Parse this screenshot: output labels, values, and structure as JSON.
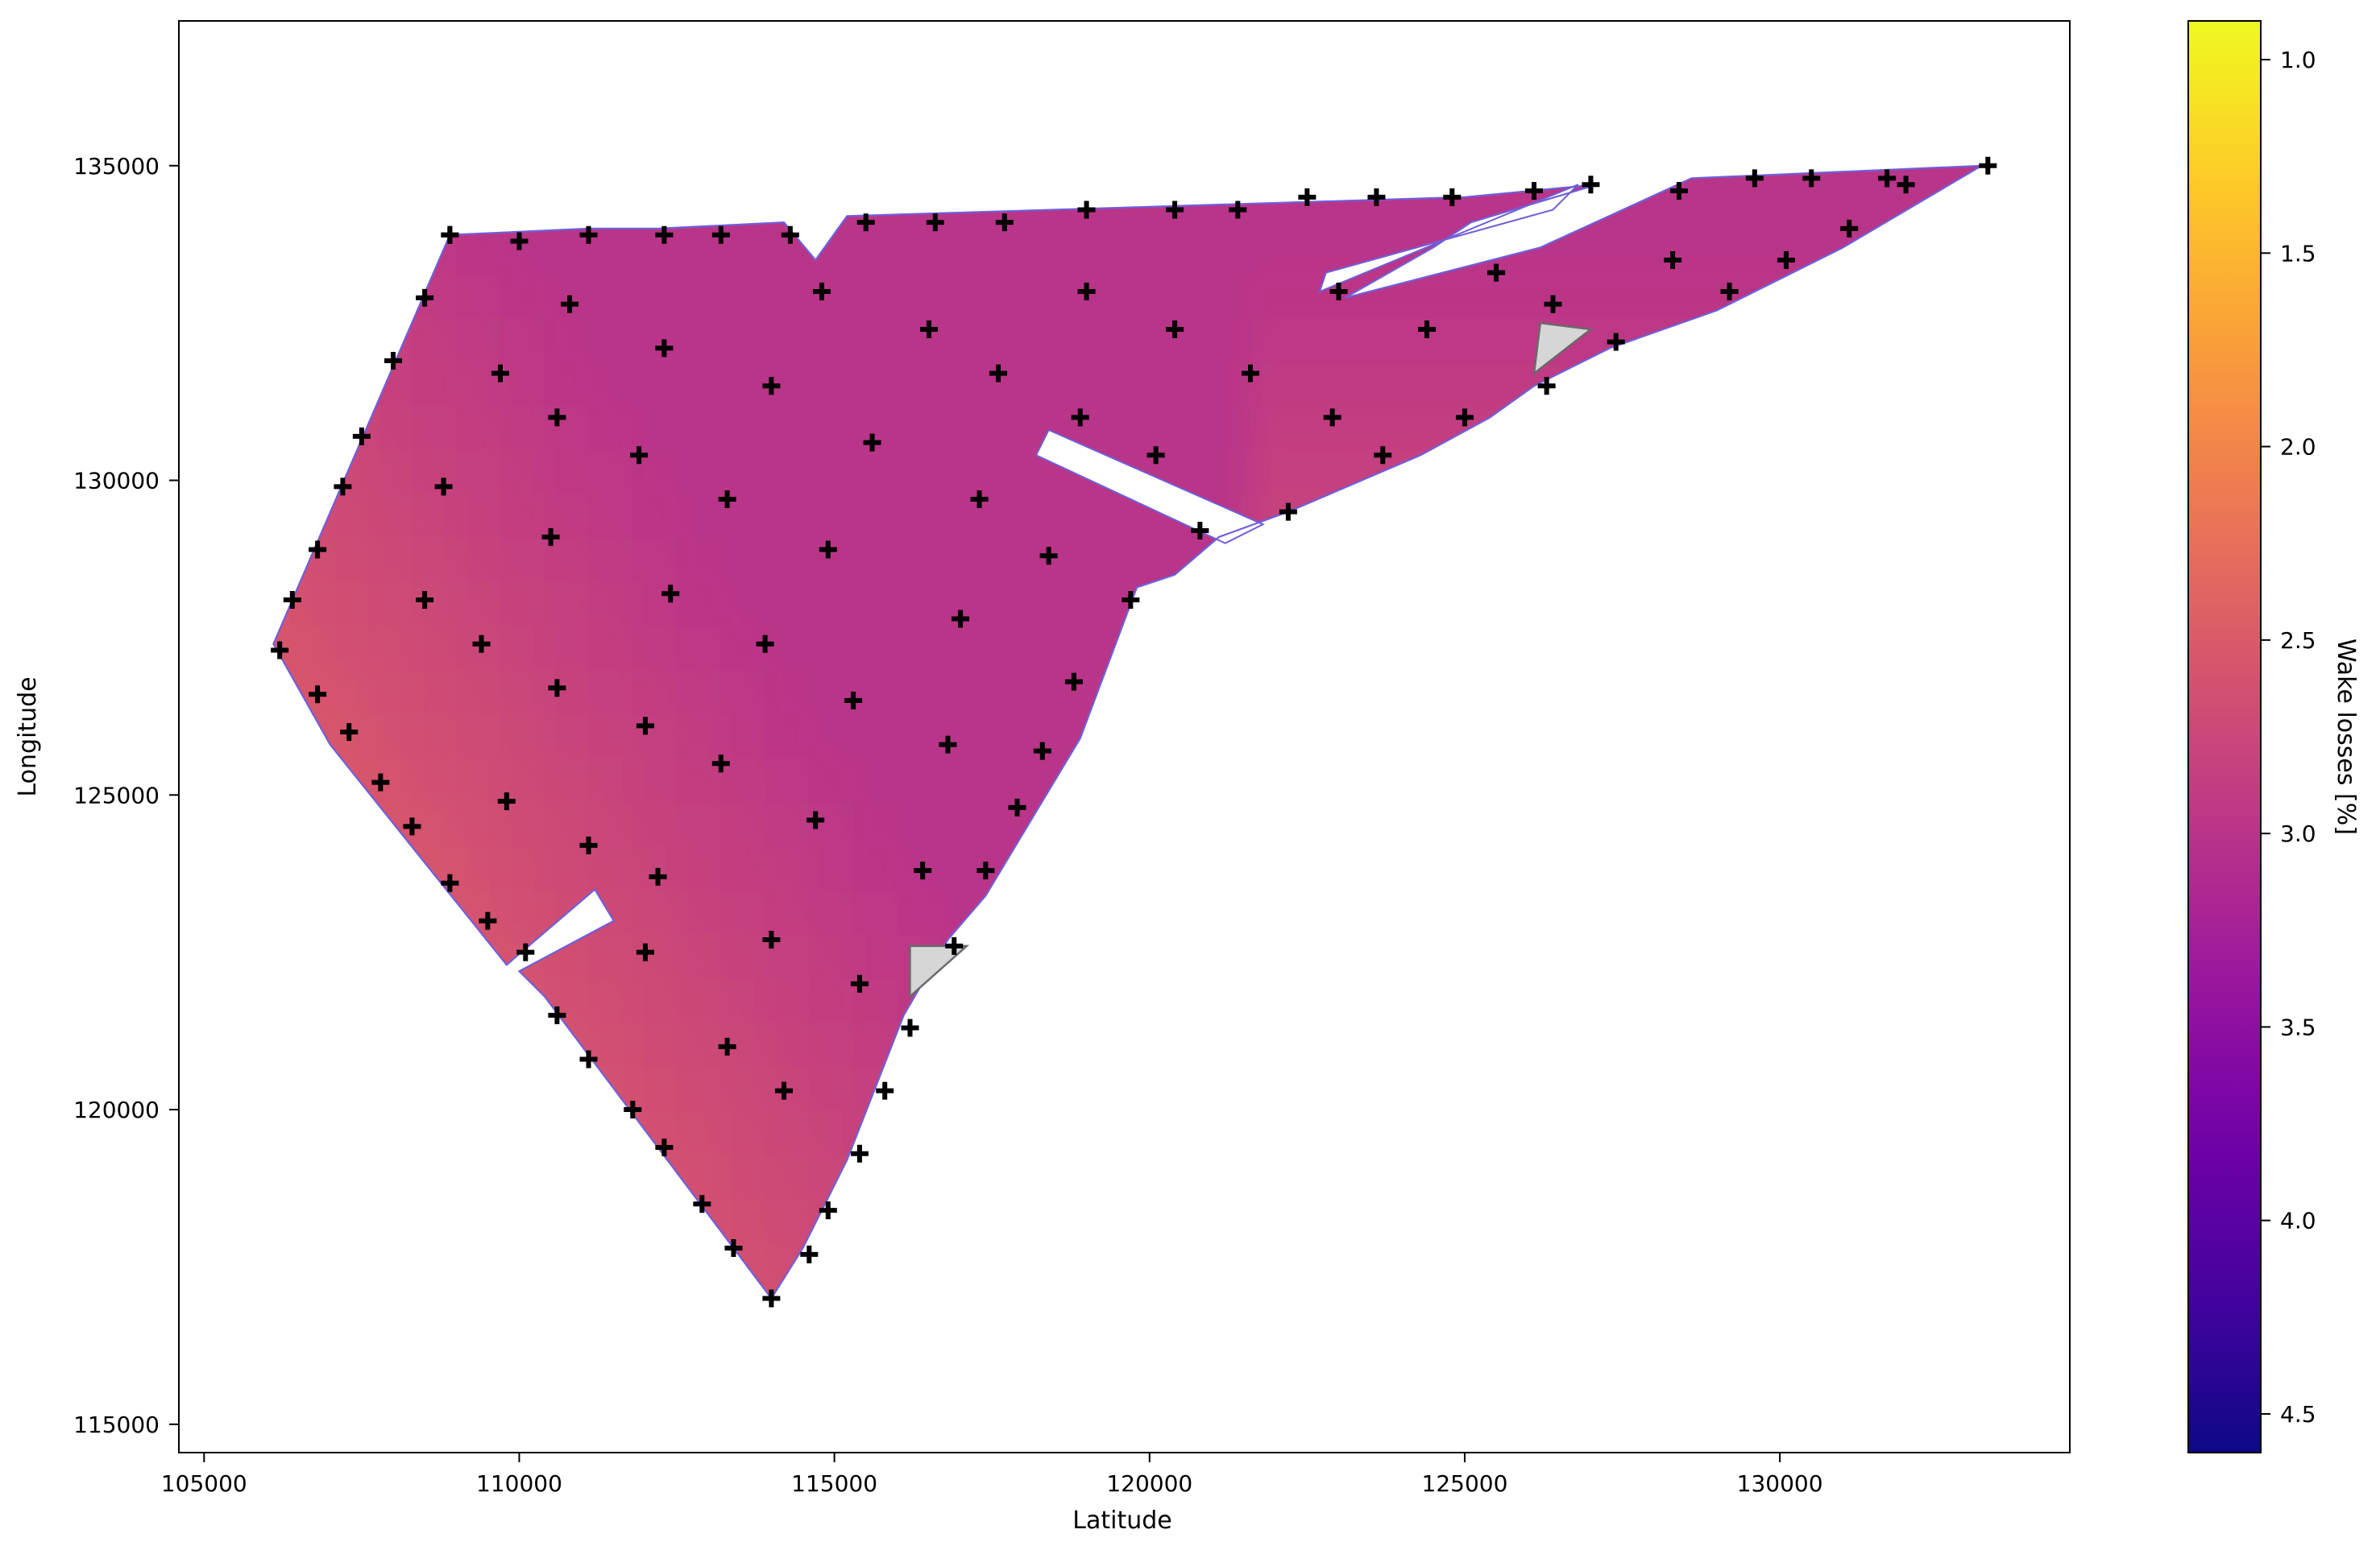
{
  "chart_data": {
    "type": "heatmap",
    "title": "",
    "xlabel": "Latitude",
    "ylabel": "Longitude",
    "xlim": [
      104600,
      134600
    ],
    "ylim": [
      114550,
      137300
    ],
    "xticks": [
      105000,
      110000,
      115000,
      120000,
      125000,
      130000
    ],
    "yticks": [
      115000,
      120000,
      125000,
      130000,
      135000
    ],
    "colorbar": {
      "label": "Wake losses [%]",
      "range_top": 0.9,
      "range_bottom": 4.6,
      "inverted": true,
      "ticks": [
        "1.0",
        "1.5",
        "2.0",
        "2.5",
        "3.0",
        "3.5",
        "4.0",
        "4.5"
      ],
      "colormap": "plasma",
      "colormap_stops": [
        "#0d0887",
        "#46039f",
        "#7201a8",
        "#9c179e",
        "#bd3786",
        "#d8576b",
        "#ed7953",
        "#fb9f3a",
        "#fdca26",
        "#f0f921"
      ]
    },
    "wake_loss_range_shown": [
      2.1,
      3.0
    ],
    "site_boundary": [
      [
        106100,
        127400
      ],
      [
        108900,
        133900
      ],
      [
        111100,
        134000
      ],
      [
        112200,
        134000
      ],
      [
        114200,
        134100
      ],
      [
        114700,
        133500
      ],
      [
        115200,
        134200
      ],
      [
        125000,
        134500
      ],
      [
        127100,
        134700
      ],
      [
        125100,
        134100
      ],
      [
        124500,
        133700
      ],
      [
        123100,
        132900
      ],
      [
        126200,
        133700
      ],
      [
        128600,
        134800
      ],
      [
        133200,
        135000
      ],
      [
        131000,
        133700
      ],
      [
        129000,
        132700
      ],
      [
        127300,
        132100
      ],
      [
        126100,
        131500
      ],
      [
        125400,
        131000
      ],
      [
        124300,
        130400
      ],
      [
        122200,
        129500
      ],
      [
        121100,
        129100
      ],
      [
        120400,
        128500
      ],
      [
        119800,
        128300
      ],
      [
        118900,
        125900
      ],
      [
        117400,
        123400
      ],
      [
        116800,
        122700
      ],
      [
        116100,
        121500
      ],
      [
        115200,
        119200
      ],
      [
        114500,
        117800
      ],
      [
        114000,
        117000
      ],
      [
        112500,
        119000
      ],
      [
        110400,
        121800
      ],
      [
        110000,
        122200
      ],
      [
        111500,
        123000
      ],
      [
        111200,
        123500
      ],
      [
        109800,
        122300
      ],
      [
        107000,
        125800
      ]
    ],
    "inner_gaps": [
      [
        [
          118400,
          130800
        ],
        [
          121800,
          129300
        ],
        [
          121200,
          129000
        ],
        [
          118200,
          130400
        ]
      ],
      [
        [
          122800,
          133300
        ],
        [
          126400,
          134300
        ],
        [
          126800,
          134700
        ],
        [
          122700,
          133000
        ]
      ]
    ],
    "exclusion_zones": [
      [
        [
          116200,
          122600
        ],
        [
          117100,
          122600
        ],
        [
          116200,
          121800
        ]
      ],
      [
        [
          126200,
          132500
        ],
        [
          127000,
          132400
        ],
        [
          126100,
          131700
        ]
      ]
    ],
    "turbines": [
      [
        106200,
        127300
      ],
      [
        106400,
        128100
      ],
      [
        106800,
        128900
      ],
      [
        107200,
        129900
      ],
      [
        107500,
        130700
      ],
      [
        108000,
        131900
      ],
      [
        108500,
        132900
      ],
      [
        108900,
        133900
      ],
      [
        106800,
        126600
      ],
      [
        107300,
        126000
      ],
      [
        107800,
        125200
      ],
      [
        108300,
        124500
      ],
      [
        108900,
        123600
      ],
      [
        109500,
        123000
      ],
      [
        110100,
        122500
      ],
      [
        110600,
        121500
      ],
      [
        111100,
        120800
      ],
      [
        111800,
        120000
      ],
      [
        112300,
        119400
      ],
      [
        112900,
        118500
      ],
      [
        113400,
        117800
      ],
      [
        114000,
        117000
      ],
      [
        114600,
        117700
      ],
      [
        114900,
        118400
      ],
      [
        115400,
        119300
      ],
      [
        115800,
        120300
      ],
      [
        116200,
        121300
      ],
      [
        116900,
        122600
      ],
      [
        117400,
        123800
      ],
      [
        117900,
        124800
      ],
      [
        118300,
        125700
      ],
      [
        118800,
        126800
      ],
      [
        119700,
        128100
      ],
      [
        120800,
        129200
      ],
      [
        122200,
        129500
      ],
      [
        123700,
        130400
      ],
      [
        125000,
        131000
      ],
      [
        126300,
        131500
      ],
      [
        127400,
        132200
      ],
      [
        129200,
        133000
      ],
      [
        130100,
        133500
      ],
      [
        131100,
        134000
      ],
      [
        132000,
        134700
      ],
      [
        133300,
        135000
      ],
      [
        131700,
        134800
      ],
      [
        130500,
        134800
      ],
      [
        129600,
        134800
      ],
      [
        128400,
        134600
      ],
      [
        127000,
        134700
      ],
      [
        126100,
        134600
      ],
      [
        124800,
        134500
      ],
      [
        123600,
        134500
      ],
      [
        122500,
        134500
      ],
      [
        121400,
        134300
      ],
      [
        120400,
        134300
      ],
      [
        119000,
        134300
      ],
      [
        117700,
        134100
      ],
      [
        116600,
        134100
      ],
      [
        115500,
        134100
      ],
      [
        114300,
        133900
      ],
      [
        113200,
        133900
      ],
      [
        112300,
        133900
      ],
      [
        111100,
        133900
      ],
      [
        110000,
        133800
      ],
      [
        108900,
        133900
      ],
      [
        109700,
        131700
      ],
      [
        110800,
        132800
      ],
      [
        110600,
        131000
      ],
      [
        111900,
        130400
      ],
      [
        112300,
        132100
      ],
      [
        113300,
        129700
      ],
      [
        114000,
        131500
      ],
      [
        114800,
        133000
      ],
      [
        115600,
        130600
      ],
      [
        116500,
        132400
      ],
      [
        117300,
        129700
      ],
      [
        117600,
        131700
      ],
      [
        118400,
        128800
      ],
      [
        118900,
        131000
      ],
      [
        119000,
        133000
      ],
      [
        120100,
        130400
      ],
      [
        120400,
        132400
      ],
      [
        121600,
        131700
      ],
      [
        122900,
        131000
      ],
      [
        123000,
        133000
      ],
      [
        124400,
        132400
      ],
      [
        125500,
        133300
      ],
      [
        126400,
        132800
      ],
      [
        128300,
        133500
      ],
      [
        108500,
        128100
      ],
      [
        108800,
        129900
      ],
      [
        109400,
        127400
      ],
      [
        109800,
        124900
      ],
      [
        110500,
        129100
      ],
      [
        110600,
        126700
      ],
      [
        111100,
        124200
      ],
      [
        112000,
        126100
      ],
      [
        112200,
        123700
      ],
      [
        112400,
        128200
      ],
      [
        113200,
        125500
      ],
      [
        113300,
        121000
      ],
      [
        113900,
        127400
      ],
      [
        114000,
        122700
      ],
      [
        114200,
        120300
      ],
      [
        114700,
        124600
      ],
      [
        114900,
        128900
      ],
      [
        115300,
        126500
      ],
      [
        115400,
        122000
      ],
      [
        116400,
        123800
      ],
      [
        116800,
        125800
      ],
      [
        117000,
        127800
      ],
      [
        112000,
        122500
      ]
    ]
  }
}
